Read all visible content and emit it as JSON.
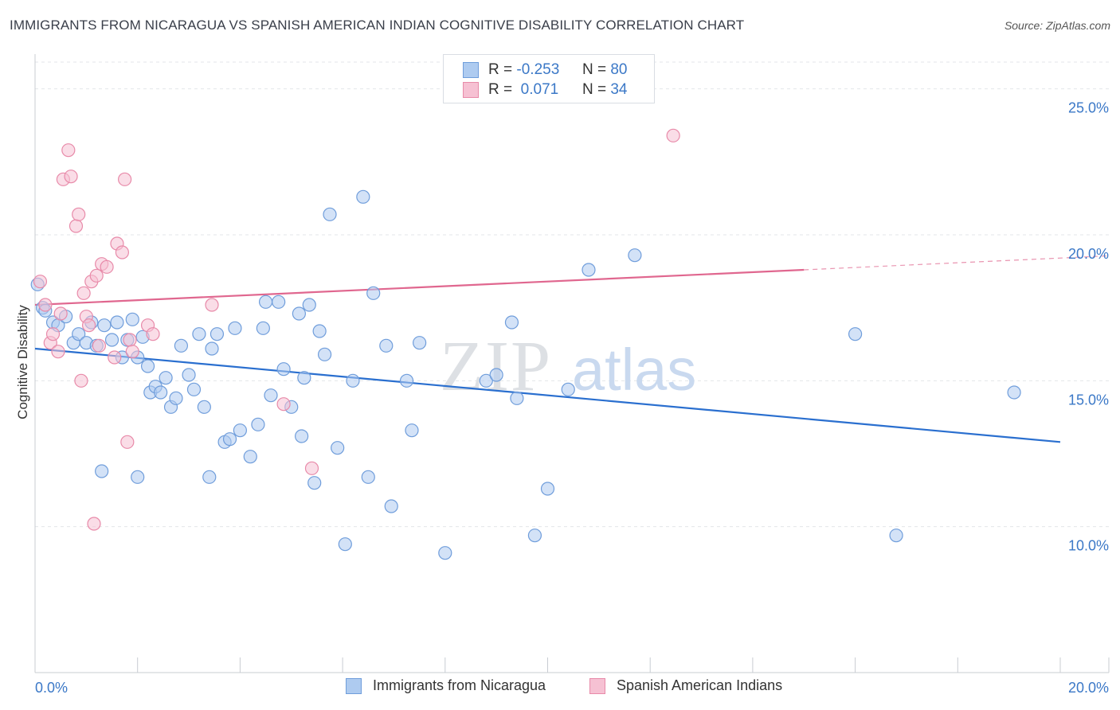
{
  "title": "IMMIGRANTS FROM NICARAGUA VS SPANISH AMERICAN INDIAN COGNITIVE DISABILITY CORRELATION CHART",
  "source": "Source: ZipAtlas.com",
  "watermark": {
    "zip": "ZIP",
    "atlas": "atlas"
  },
  "legend_top": {
    "rows": [
      {
        "r_label": "R =",
        "r_value": "-0.253",
        "n_label": "N =",
        "n_value": "80"
      },
      {
        "r_label": "R =",
        "r_value": " 0.071",
        "n_label": "N =",
        "n_value": "34"
      }
    ]
  },
  "colors": {
    "blue_fill": "#aecbf0",
    "blue_stroke": "#6f9ddb",
    "blue_line": "#2a6fcf",
    "pink_fill": "#f6c1d3",
    "pink_stroke": "#e88aa9",
    "pink_line": "#e0678f",
    "grid": "#e3e6ea",
    "tick_label": "#3b78c7"
  },
  "chart_data": {
    "type": "scatter",
    "title": "IMMIGRANTS FROM NICARAGUA VS SPANISH AMERICAN INDIAN COGNITIVE DISABILITY CORRELATION CHART",
    "xlabel": "",
    "ylabel": "Cognitive Disability",
    "xlim": [
      0,
      20
    ],
    "ylim": [
      5,
      26
    ],
    "x_tick_labels": [
      "0.0%",
      "20.0%"
    ],
    "y_ticks": [
      10,
      15,
      20,
      25
    ],
    "y_tick_labels": [
      "10.0%",
      "15.0%",
      "20.0%",
      "25.0%"
    ],
    "grid": true,
    "legend_position": "bottom",
    "series": [
      {
        "name": "Immigrants from Nicaragua",
        "color": "blue",
        "R": -0.253,
        "N": 80,
        "trend": {
          "x": [
            0,
            20
          ],
          "y": [
            16.1,
            12.9
          ],
          "dashed_from": null
        },
        "points": [
          [
            0.15,
            17.5
          ],
          [
            0.35,
            17.0
          ],
          [
            0.45,
            16.9
          ],
          [
            0.6,
            17.2
          ],
          [
            0.75,
            16.3
          ],
          [
            0.85,
            16.6
          ],
          [
            1.0,
            16.3
          ],
          [
            1.1,
            17.0
          ],
          [
            1.2,
            16.2
          ],
          [
            1.35,
            16.9
          ],
          [
            1.5,
            16.4
          ],
          [
            1.6,
            17.0
          ],
          [
            1.7,
            15.8
          ],
          [
            1.8,
            16.4
          ],
          [
            1.9,
            17.1
          ],
          [
            2.0,
            15.8
          ],
          [
            2.1,
            16.5
          ],
          [
            2.2,
            15.5
          ],
          [
            2.25,
            14.6
          ],
          [
            2.35,
            14.8
          ],
          [
            2.45,
            14.6
          ],
          [
            2.55,
            15.1
          ],
          [
            2.65,
            14.1
          ],
          [
            2.75,
            14.4
          ],
          [
            2.85,
            16.2
          ],
          [
            3.0,
            15.2
          ],
          [
            3.1,
            14.7
          ],
          [
            3.2,
            16.6
          ],
          [
            3.3,
            14.1
          ],
          [
            3.45,
            16.1
          ],
          [
            3.55,
            16.6
          ],
          [
            3.7,
            12.9
          ],
          [
            3.8,
            13.0
          ],
          [
            3.9,
            16.8
          ],
          [
            4.0,
            13.3
          ],
          [
            4.2,
            12.4
          ],
          [
            4.35,
            13.5
          ],
          [
            4.45,
            16.8
          ],
          [
            4.5,
            17.7
          ],
          [
            4.6,
            14.5
          ],
          [
            4.75,
            17.7
          ],
          [
            4.85,
            15.4
          ],
          [
            5.0,
            14.1
          ],
          [
            5.15,
            17.3
          ],
          [
            5.25,
            15.1
          ],
          [
            5.35,
            17.6
          ],
          [
            5.45,
            11.5
          ],
          [
            5.55,
            16.7
          ],
          [
            5.65,
            15.9
          ],
          [
            5.75,
            20.7
          ],
          [
            5.9,
            12.7
          ],
          [
            6.05,
            9.4
          ],
          [
            6.2,
            15.0
          ],
          [
            6.4,
            21.3
          ],
          [
            6.5,
            11.7
          ],
          [
            6.6,
            18.0
          ],
          [
            6.85,
            16.2
          ],
          [
            6.95,
            10.7
          ],
          [
            7.25,
            15.0
          ],
          [
            7.35,
            13.3
          ],
          [
            7.5,
            16.3
          ],
          [
            8.0,
            9.1
          ],
          [
            8.8,
            15.0
          ],
          [
            9.0,
            15.2
          ],
          [
            9.3,
            17.0
          ],
          [
            9.4,
            14.4
          ],
          [
            9.75,
            9.7
          ],
          [
            10.0,
            11.3
          ],
          [
            10.4,
            14.7
          ],
          [
            10.8,
            18.8
          ],
          [
            11.7,
            19.3
          ],
          [
            16.0,
            16.6
          ],
          [
            16.8,
            9.7
          ],
          [
            19.1,
            14.6
          ],
          [
            0.05,
            18.3
          ],
          [
            0.2,
            17.4
          ],
          [
            1.3,
            11.9
          ],
          [
            2.0,
            11.7
          ],
          [
            3.4,
            11.7
          ],
          [
            5.2,
            13.1
          ]
        ]
      },
      {
        "name": "Spanish American Indians",
        "color": "pink",
        "R": 0.071,
        "N": 34,
        "trend": {
          "x": [
            0,
            20
          ],
          "y": [
            17.6,
            19.2
          ],
          "dashed_from": 15.0
        },
        "points": [
          [
            0.1,
            18.4
          ],
          [
            0.2,
            17.6
          ],
          [
            0.3,
            16.3
          ],
          [
            0.35,
            16.6
          ],
          [
            0.45,
            16.0
          ],
          [
            0.5,
            17.3
          ],
          [
            0.55,
            21.9
          ],
          [
            0.65,
            22.9
          ],
          [
            0.7,
            22.0
          ],
          [
            0.8,
            20.3
          ],
          [
            0.85,
            20.7
          ],
          [
            0.9,
            15.0
          ],
          [
            0.95,
            18.0
          ],
          [
            1.0,
            17.2
          ],
          [
            1.05,
            16.9
          ],
          [
            1.1,
            18.4
          ],
          [
            1.15,
            10.1
          ],
          [
            1.2,
            18.6
          ],
          [
            1.25,
            16.2
          ],
          [
            1.3,
            19.0
          ],
          [
            1.4,
            18.9
          ],
          [
            1.55,
            15.8
          ],
          [
            1.6,
            19.7
          ],
          [
            1.7,
            19.4
          ],
          [
            1.75,
            21.9
          ],
          [
            1.8,
            12.9
          ],
          [
            1.85,
            16.4
          ],
          [
            1.9,
            16.0
          ],
          [
            2.2,
            16.9
          ],
          [
            2.3,
            16.6
          ],
          [
            3.45,
            17.6
          ],
          [
            4.85,
            14.2
          ],
          [
            5.4,
            12.0
          ],
          [
            12.45,
            23.4
          ]
        ]
      }
    ]
  },
  "legend_bottom": [
    {
      "label": "Immigrants from Nicaragua"
    },
    {
      "label": "Spanish American Indians"
    }
  ]
}
